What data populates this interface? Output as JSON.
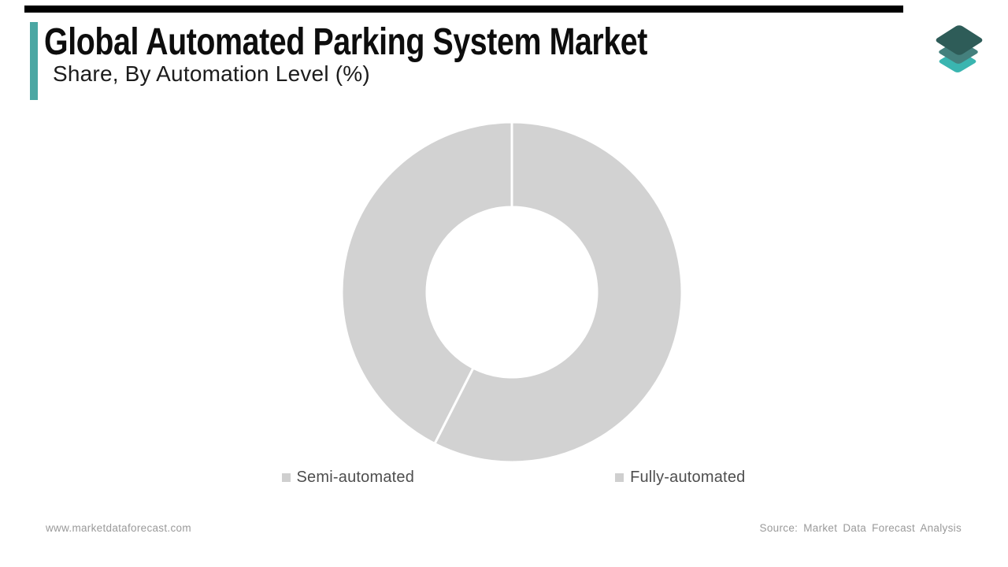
{
  "header": {
    "title": "Global Automated Parking System Market",
    "subtitle": "Share, By Automation Level (%)",
    "accent_bar_color": "#4BA7A3",
    "top_bar_color": "#000000"
  },
  "logo": {
    "name": "market-data-forecast-layers-logo",
    "layer_colors": [
      "#2E5C58",
      "#44807D",
      "#3AB5B0"
    ]
  },
  "chart_data": {
    "type": "pie",
    "subtype": "donut",
    "title": "Global Automated Parking System Market Share, By Automation Level (%)",
    "labels": [
      "Semi-automated",
      "Fully-automated"
    ],
    "values": [
      57.5,
      42.5
    ],
    "unit": "%",
    "colors": [
      "#D2D2D2",
      "#D2D2D2"
    ],
    "slice_border_color": "#FFFFFF",
    "start_angle": 0,
    "inner_radius_ratio": 0.5,
    "legend_position": "bottom",
    "legend_marker_color": "#CFCFCF",
    "values_shown_on_chart": false
  },
  "footer": {
    "website": "www.marketdataforecast.com",
    "source": "Source: Market Data Forecast Analysis"
  }
}
